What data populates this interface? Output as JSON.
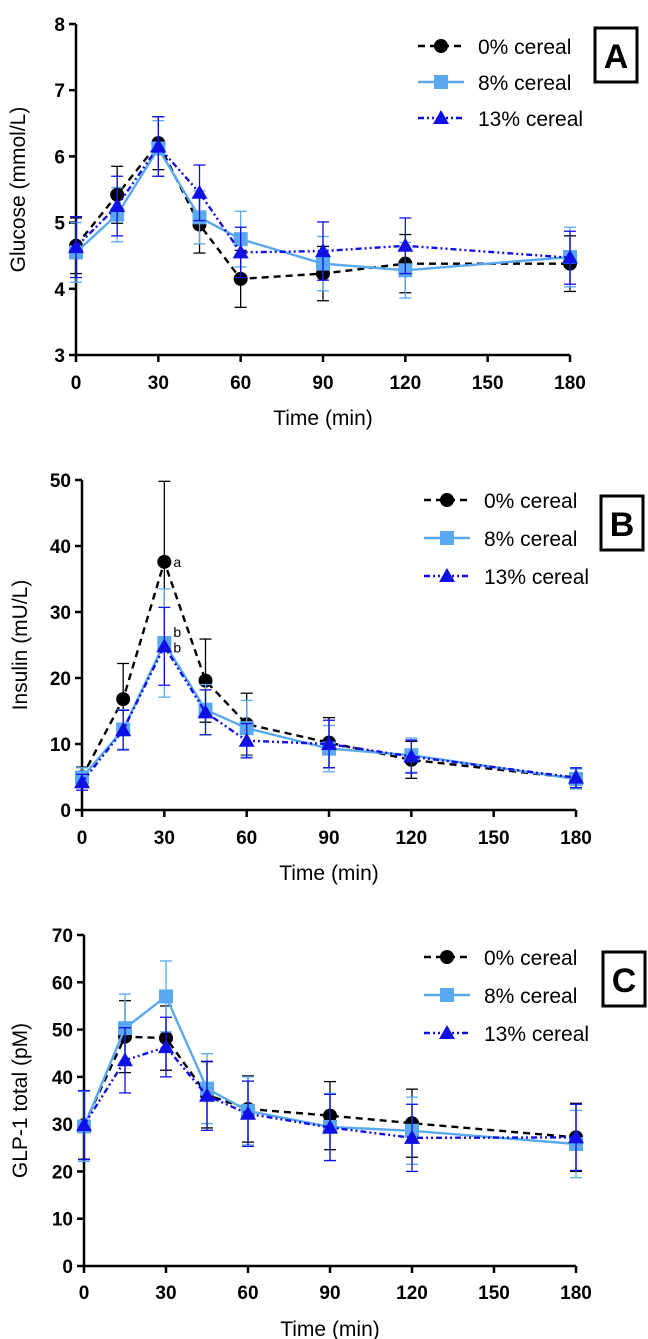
{
  "styles": {
    "0% cereal": {
      "color": "#000000",
      "marker": "circle",
      "dash": "7,5"
    },
    "8% cereal": {
      "color": "#5aa8f0",
      "marker": "square",
      "dash": ""
    },
    "13% cereal": {
      "color": "#1010e6",
      "marker": "triangle",
      "dash": "6,3,2,3,2,3"
    }
  },
  "chart_data": [
    {
      "type": "line",
      "panel": "A",
      "xlabel": "Time (min)",
      "ylabel": "Glucose (mmol/L)",
      "xlim": [
        0,
        180
      ],
      "ylim": [
        3,
        8
      ],
      "xticks": [
        0,
        30,
        60,
        90,
        120,
        150,
        180
      ],
      "yticks": [
        3,
        4,
        5,
        6,
        7,
        8
      ],
      "grid": false,
      "legend": "top-right",
      "x": [
        0,
        15,
        30,
        45,
        60,
        90,
        120,
        180
      ],
      "series": [
        {
          "name": "0% cereal",
          "values": [
            4.65,
            5.42,
            6.2,
            4.97,
            4.15,
            4.23,
            4.38,
            4.38
          ],
          "errors": [
            0.42,
            0.43,
            0.4,
            0.43,
            0.43,
            0.41,
            0.44,
            0.42
          ]
        },
        {
          "name": "8% cereal",
          "values": [
            4.55,
            5.12,
            6.12,
            5.08,
            4.75,
            4.38,
            4.28,
            4.48
          ],
          "errors": [
            0.45,
            0.41,
            0.42,
            0.4,
            0.42,
            0.41,
            0.42,
            0.45
          ]
        },
        {
          "name": "13% cereal",
          "values": [
            4.63,
            5.25,
            6.15,
            5.45,
            4.55,
            4.57,
            4.65,
            4.47
          ],
          "errors": [
            0.46,
            0.45,
            0.45,
            0.42,
            0.38,
            0.44,
            0.42,
            0.4
          ]
        }
      ],
      "annotations": []
    },
    {
      "type": "line",
      "panel": "B",
      "xlabel": "Time (min)",
      "ylabel": "Insulin (mU/L)",
      "xlim": [
        0,
        180
      ],
      "ylim": [
        0,
        50
      ],
      "xticks": [
        0,
        30,
        60,
        90,
        120,
        150,
        180
      ],
      "yticks": [
        0,
        10,
        20,
        30,
        40,
        50
      ],
      "grid": false,
      "legend": "top-right",
      "x": [
        0,
        15,
        30,
        45,
        60,
        90,
        120,
        180
      ],
      "series": [
        {
          "name": "0% cereal",
          "values": [
            5.0,
            16.8,
            37.6,
            19.6,
            13.0,
            10.2,
            7.6,
            4.8
          ],
          "errors": [
            1.5,
            5.4,
            12.2,
            6.3,
            4.7,
            3.8,
            2.8,
            1.5
          ]
        },
        {
          "name": "8% cereal",
          "values": [
            4.9,
            12.2,
            25.3,
            15.2,
            12.4,
            9.3,
            8.3,
            4.7
          ],
          "errors": [
            1.5,
            3.0,
            8.2,
            3.8,
            4.2,
            3.5,
            2.6,
            1.5
          ]
        },
        {
          "name": "13% cereal",
          "values": [
            4.2,
            12.1,
            24.8,
            14.8,
            10.5,
            10.0,
            8.1,
            4.9
          ],
          "errors": [
            1.2,
            3.0,
            5.9,
            3.4,
            2.6,
            3.6,
            2.5,
            1.5
          ]
        }
      ],
      "annotations": [
        {
          "text": "a",
          "x": 30,
          "y": 37.6
        },
        {
          "text": "b",
          "x": 30,
          "y": 27.0
        },
        {
          "text": "b",
          "x": 30,
          "y": 24.6
        }
      ]
    },
    {
      "type": "line",
      "panel": "C",
      "xlabel": "Time (min)",
      "ylabel": "GLP-1 total (pM)",
      "xlim": [
        0,
        180
      ],
      "ylim": [
        0,
        70
      ],
      "xticks": [
        0,
        30,
        60,
        90,
        120,
        150,
        180
      ],
      "yticks": [
        0,
        10,
        20,
        30,
        40,
        50,
        60,
        70
      ],
      "grid": false,
      "legend": "top-right",
      "x": [
        0,
        15,
        30,
        45,
        60,
        90,
        120,
        180
      ],
      "series": [
        {
          "name": "0% cereal",
          "values": [
            29.8,
            48.5,
            48.2,
            36.2,
            33.2,
            31.8,
            30.2,
            27.2
          ],
          "errors": [
            7.2,
            7.6,
            6.8,
            7.0,
            7.0,
            7.2,
            7.2,
            7.2
          ]
        },
        {
          "name": "8% cereal",
          "values": [
            29.5,
            50.3,
            57.0,
            37.5,
            32.8,
            29.4,
            28.6,
            25.8
          ],
          "errors": [
            7.4,
            7.2,
            7.5,
            7.4,
            7.2,
            7.1,
            7.1,
            7.1
          ]
        },
        {
          "name": "13% cereal",
          "values": [
            29.8,
            43.5,
            46.3,
            36.0,
            32.2,
            29.3,
            27.1,
            27.2
          ],
          "errors": [
            7.3,
            6.9,
            6.3,
            7.3,
            6.9,
            7.0,
            7.1,
            7.0
          ]
        }
      ],
      "annotations": []
    }
  ]
}
